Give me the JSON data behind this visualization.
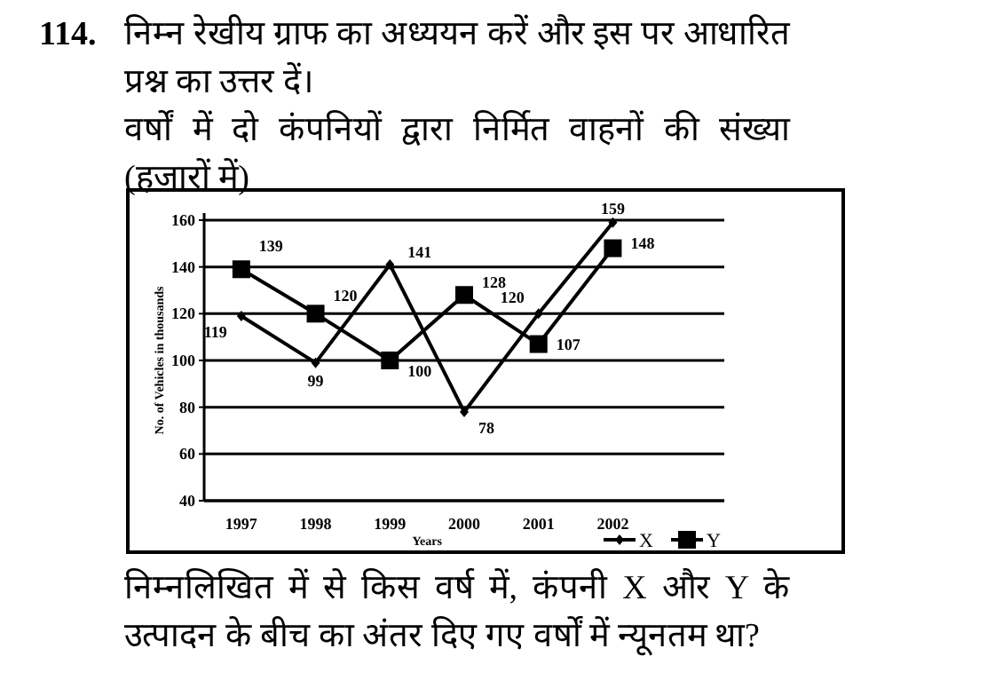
{
  "chart_data": {
    "type": "line",
    "title": "114. निम्न रेखीय ग्राफ का अध्ययन करें और इस पर आधारित प्रश्न का उत्तर दें।",
    "subtitle": "वर्षों में दो कंपनियों द्वारा निर्मित वाहनों की संख्या (हजारों में)",
    "annotations": [
      "निम्नलिखित में से किस वर्ष में, कंपनी X और Y के उत्पादन के बीच का अंतर दिए गए वर्षों में न्यूनतम था?"
    ],
    "xlabel": "Years",
    "ylabel": "No. of Vehicles in thousands",
    "categories": [
      "1997",
      "1998",
      "1999",
      "2000",
      "2001",
      "2002"
    ],
    "series": [
      {
        "name": "X",
        "color": "#000000",
        "marker": "diamond",
        "values": [
          119,
          99,
          141,
          78,
          120,
          159
        ]
      },
      {
        "name": "Y",
        "color": "#000000",
        "marker": "square",
        "values": [
          139,
          120,
          100,
          128,
          107,
          148
        ]
      }
    ],
    "ylim": [
      40,
      160
    ],
    "yticks": [
      40,
      60,
      80,
      100,
      120,
      140,
      160
    ],
    "grid": "y",
    "legend": "bottom right",
    "data_labels": true
  }
}
